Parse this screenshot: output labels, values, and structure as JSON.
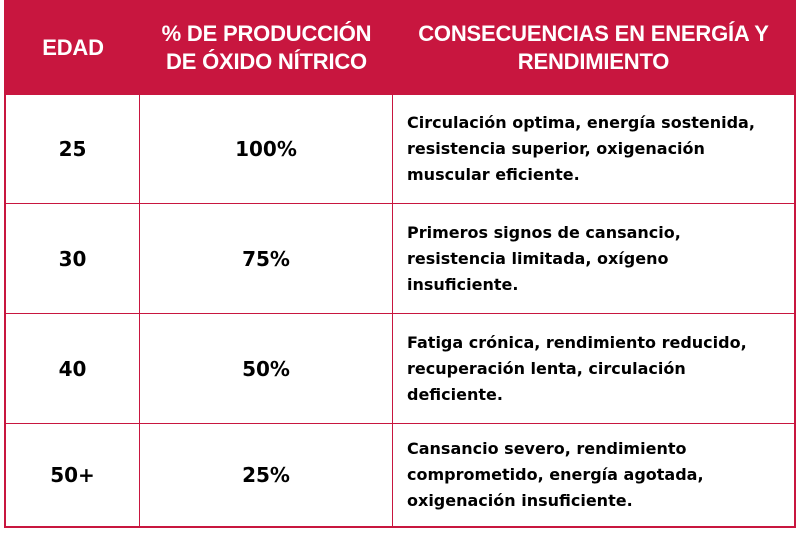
{
  "table": {
    "headers": [
      "EDAD",
      "% DE PRODUCCIÓN DE ÓXIDO NÍTRICO",
      "CONSECUENCIAS EN ENERGÍA Y RENDIMIENTO"
    ],
    "rows": [
      {
        "age": "25",
        "percent": "100%",
        "consequence": "Circulación optima, energía sostenida, resistencia superior, oxigenación muscular eficiente."
      },
      {
        "age": "30",
        "percent": "75%",
        "consequence": "Primeros signos de cansancio, resistencia limitada, oxígeno insuficiente."
      },
      {
        "age": "40",
        "percent": "50%",
        "consequence": "Fatiga crónica, rendimiento reducido, recuperación lenta, circulación deficiente."
      },
      {
        "age": "50+",
        "percent": "25%",
        "consequence": "Cansancio severo, rendimiento comprometido, energía agotada, oxigenación insuficiente."
      }
    ]
  },
  "colors": {
    "header_bg": "#c8163f",
    "header_text": "#ffffff",
    "border": "#c8163f",
    "body_text": "#000000"
  }
}
